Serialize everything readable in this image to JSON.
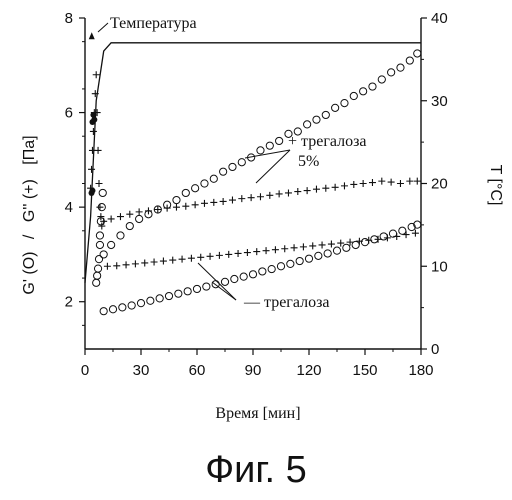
{
  "chart_data": {
    "type": "scatter",
    "caption": "Фиг. 5",
    "xlabel": "Время [мин]",
    "ylabel_left": {
      "g1": "G' (O)",
      "slash": "/",
      "g2": "G'' (+)",
      "unit": "[Па]"
    },
    "ylabel_right": "T [°C]",
    "xlim": [
      0,
      180
    ],
    "ylim_left": [
      1,
      8
    ],
    "ylim_right": [
      0,
      40
    ],
    "x_ticks": [
      "0",
      "30",
      "60",
      "90",
      "120",
      "150",
      "180"
    ],
    "x_tick_values": [
      0,
      30,
      60,
      90,
      120,
      150,
      180
    ],
    "y_left_ticks": [
      "2",
      "4",
      "6",
      "8"
    ],
    "y_left_tick_values": [
      2,
      4,
      6,
      8
    ],
    "y_right_ticks": [
      "0",
      "10",
      "20",
      "30",
      "40"
    ],
    "y_right_tick_values": [
      0,
      10,
      20,
      30,
      40
    ],
    "annotations": {
      "temperature": "Температура",
      "with_trehalose": "+ трегалоза",
      "concentration": "5%",
      "without_trehalose": "— трегалоза"
    },
    "series": [
      {
        "marker": "circle",
        "axis": "left",
        "group": "with_trehalose",
        "x": [
          10,
          14,
          19,
          24,
          29,
          34,
          39,
          44,
          49,
          54,
          59,
          64,
          69,
          74,
          79,
          84,
          89,
          94,
          99,
          104,
          109,
          114,
          119,
          124,
          129,
          134,
          139,
          144,
          149,
          154,
          159,
          164,
          169,
          174,
          178
        ],
        "y": [
          3.0,
          3.2,
          3.4,
          3.6,
          3.75,
          3.85,
          3.95,
          4.05,
          4.15,
          4.3,
          4.4,
          4.5,
          4.6,
          4.75,
          4.85,
          4.95,
          5.05,
          5.2,
          5.3,
          5.4,
          5.55,
          5.6,
          5.75,
          5.85,
          5.95,
          6.1,
          6.2,
          6.35,
          6.45,
          6.55,
          6.7,
          6.85,
          6.95,
          7.1,
          7.25
        ]
      },
      {
        "marker": "plus",
        "axis": "left",
        "group": "with_trehalose",
        "x": [
          10,
          14,
          19,
          24,
          29,
          34,
          39,
          44,
          49,
          54,
          59,
          64,
          69,
          74,
          79,
          84,
          89,
          94,
          99,
          104,
          109,
          114,
          119,
          124,
          129,
          134,
          139,
          144,
          149,
          154,
          159,
          164,
          169,
          174,
          178
        ],
        "y": [
          3.7,
          3.75,
          3.8,
          3.85,
          3.9,
          3.92,
          3.95,
          3.98,
          4.0,
          4.02,
          4.05,
          4.08,
          4.1,
          4.12,
          4.15,
          4.18,
          4.2,
          4.22,
          4.25,
          4.28,
          4.3,
          4.33,
          4.35,
          4.38,
          4.4,
          4.42,
          4.45,
          4.48,
          4.5,
          4.52,
          4.55,
          4.53,
          4.5,
          4.55,
          4.55
        ]
      },
      {
        "marker": "circle",
        "axis": "left",
        "group": "without_trehalose",
        "x": [
          10,
          15,
          20,
          25,
          30,
          35,
          40,
          45,
          50,
          55,
          60,
          65,
          70,
          75,
          80,
          85,
          90,
          95,
          100,
          105,
          110,
          115,
          120,
          125,
          130,
          135,
          140,
          145,
          150,
          155,
          160,
          165,
          170,
          175,
          178
        ],
        "y": [
          1.8,
          1.84,
          1.88,
          1.92,
          1.97,
          2.02,
          2.07,
          2.12,
          2.17,
          2.22,
          2.27,
          2.32,
          2.37,
          2.42,
          2.48,
          2.53,
          2.58,
          2.64,
          2.69,
          2.75,
          2.8,
          2.86,
          2.91,
          2.97,
          3.02,
          3.08,
          3.14,
          3.2,
          3.26,
          3.32,
          3.38,
          3.44,
          3.5,
          3.58,
          3.63
        ]
      },
      {
        "marker": "plus",
        "axis": "left",
        "group": "without_trehalose",
        "x": [
          12,
          17,
          22,
          27,
          32,
          37,
          42,
          47,
          52,
          57,
          62,
          67,
          72,
          77,
          82,
          87,
          92,
          97,
          102,
          107,
          112,
          117,
          122,
          127,
          132,
          137,
          142,
          147,
          152,
          157,
          162,
          167,
          172,
          177
        ],
        "y": [
          2.75,
          2.76,
          2.78,
          2.8,
          2.82,
          2.84,
          2.86,
          2.88,
          2.9,
          2.92,
          2.94,
          2.96,
          2.98,
          3.0,
          3.02,
          3.04,
          3.06,
          3.08,
          3.1,
          3.12,
          3.14,
          3.16,
          3.18,
          3.2,
          3.22,
          3.24,
          3.26,
          3.28,
          3.3,
          3.32,
          3.35,
          3.38,
          3.42,
          3.45
        ]
      },
      {
        "marker": "circle",
        "axis": "left",
        "group": "early",
        "x": [
          6,
          6.5,
          7,
          7.5,
          8,
          8,
          8.5,
          9,
          9.5
        ],
        "y": [
          2.4,
          2.55,
          2.7,
          2.9,
          3.2,
          3.4,
          3.7,
          4.0,
          4.3
        ]
      },
      {
        "marker": "plus",
        "axis": "left",
        "group": "early",
        "x": [
          3,
          3.5,
          4,
          4.5,
          5,
          5.5,
          6,
          6.5,
          7,
          7.5,
          8,
          8.5,
          9
        ],
        "y": [
          4.4,
          4.8,
          5.2,
          5.6,
          6.0,
          6.4,
          6.8,
          6.0,
          5.2,
          4.5,
          4.0,
          3.8,
          3.6
        ]
      },
      {
        "marker": "line",
        "axis": "right",
        "name": "Температура",
        "x": [
          0,
          3,
          6,
          10,
          14,
          20,
          180
        ],
        "y": [
          8,
          16,
          30,
          36,
          37,
          37,
          37
        ]
      }
    ]
  }
}
